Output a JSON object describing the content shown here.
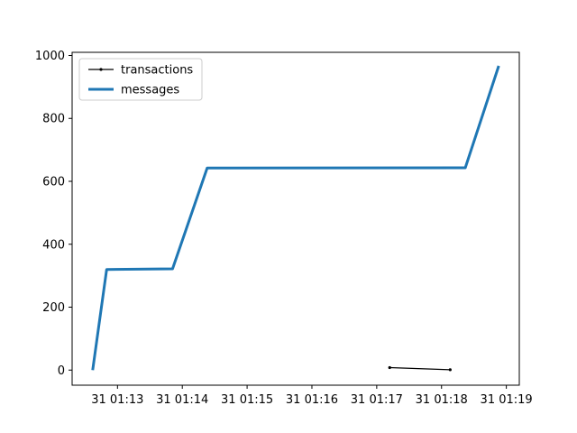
{
  "chart_data": {
    "type": "line",
    "title": "",
    "xlabel": "",
    "ylabel": "",
    "x_axis": {
      "kind": "time",
      "range": [
        "01:12:18",
        "01:19:12"
      ],
      "ticks": [
        "01:13:00",
        "01:14:00",
        "01:15:00",
        "01:16:00",
        "01:17:00",
        "01:18:00",
        "01:19:00"
      ],
      "tick_labels": [
        "31 01:13",
        "31 01:14",
        "31 01:15",
        "31 01:16",
        "31 01:17",
        "31 01:18",
        "31 01:19"
      ]
    },
    "y_axis": {
      "range": [
        -48,
        1010
      ],
      "ticks": [
        0,
        200,
        400,
        600,
        800,
        1000
      ],
      "tick_labels": [
        "0",
        "200",
        "400",
        "600",
        "800",
        "1000"
      ]
    },
    "legend": {
      "position": "upper-left",
      "entries": [
        "transactions",
        "messages"
      ]
    },
    "grid": false,
    "series": [
      {
        "name": "transactions",
        "color": "#000000",
        "marker": "dot",
        "x": [
          "01:17:12",
          "01:18:08"
        ],
        "y": [
          8,
          1
        ]
      },
      {
        "name": "messages",
        "color": "#1f77b4",
        "marker": "none",
        "x": [
          "01:12:37",
          "01:12:50",
          "01:13:51",
          "01:14:23",
          "01:18:22",
          "01:18:53"
        ],
        "y": [
          0,
          320,
          322,
          642,
          643,
          967
        ]
      }
    ]
  }
}
